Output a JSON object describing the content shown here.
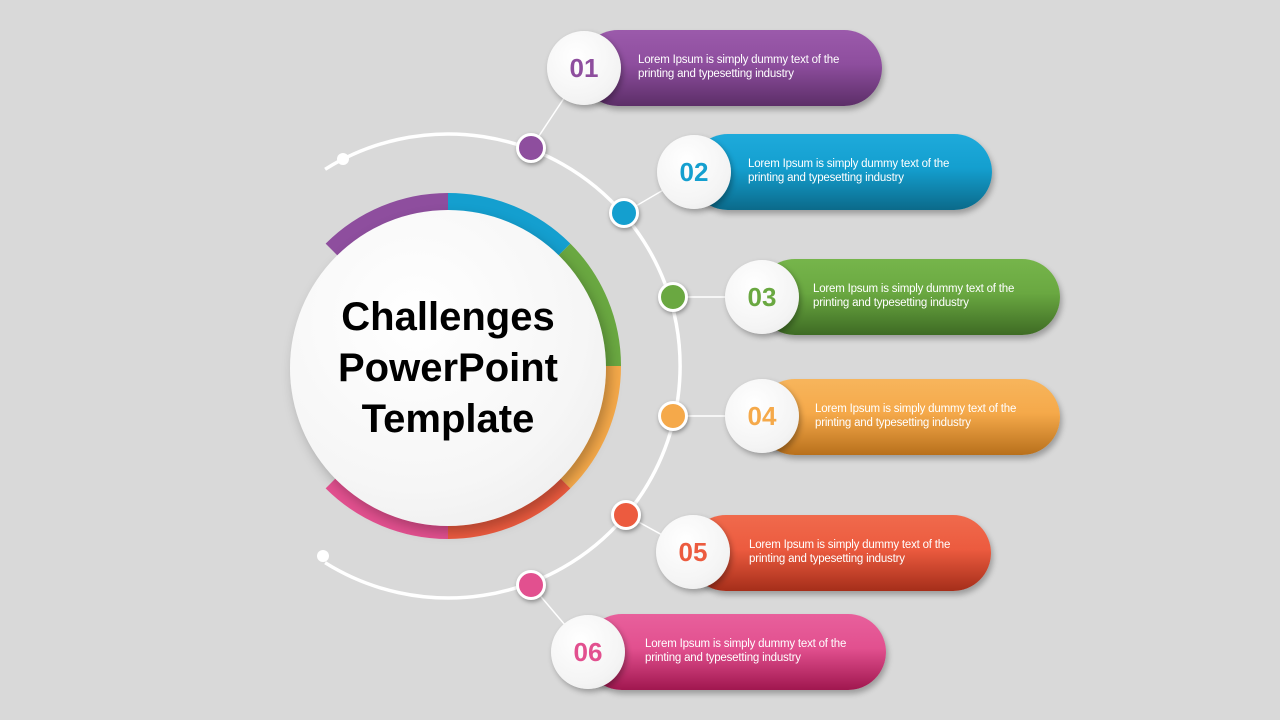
{
  "title": "Challenges PowerPoint Template",
  "items": [
    {
      "number": "01",
      "text": "Lorem Ipsum is simply dummy text of the printing and typesetting industry",
      "color": "#8e4e9e",
      "dark": "#5c2e68",
      "light": "#9b5aab"
    },
    {
      "number": "02",
      "text": "Lorem Ipsum is simply dummy text of the printing and typesetting industry",
      "color": "#149fcf",
      "dark": "#0b6a8a",
      "light": "#1eaadb"
    },
    {
      "number": "03",
      "text": "Lorem Ipsum is simply dummy text of the printing and typesetting industry",
      "color": "#6aa841",
      "dark": "#3e6b24",
      "light": "#76b54b"
    },
    {
      "number": "04",
      "text": "Lorem Ipsum is simply dummy text of the printing and typesetting industry",
      "color": "#f5a94a",
      "dark": "#b8701c",
      "light": "#f7b55c"
    },
    {
      "number": "05",
      "text": "Lorem Ipsum is simply dummy text of the printing and typesetting industry",
      "color": "#ec5b3f",
      "dark": "#a52e1a",
      "light": "#f06a4c"
    },
    {
      "number": "06",
      "text": "Lorem Ipsum is simply dummy text of the printing and typesetting industry",
      "color": "#e2508f",
      "dark": "#a0174f",
      "light": "#e8609c"
    }
  ]
}
